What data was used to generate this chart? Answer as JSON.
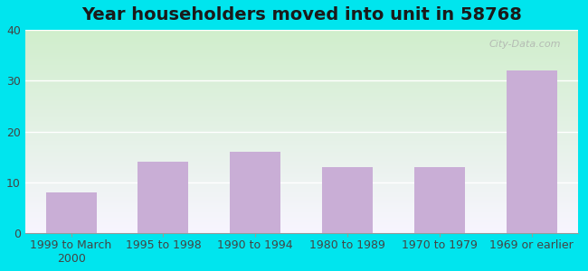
{
  "title": "Year householders moved into unit in 58768",
  "categories": [
    "1999 to March\n2000",
    "1995 to 1998",
    "1990 to 1994",
    "1980 to 1989",
    "1970 to 1979",
    "1969 or earlier"
  ],
  "values": [
    8,
    14,
    16,
    13,
    13,
    32
  ],
  "bar_color": "#c9aed6",
  "background_top": "#d0eecc",
  "background_bottom": "#f8f5ff",
  "outer_background": "#00e5ee",
  "ylim": [
    0,
    40
  ],
  "yticks": [
    0,
    10,
    20,
    30,
    40
  ],
  "title_fontsize": 14,
  "tick_fontsize": 9,
  "watermark": "City-Data.com"
}
